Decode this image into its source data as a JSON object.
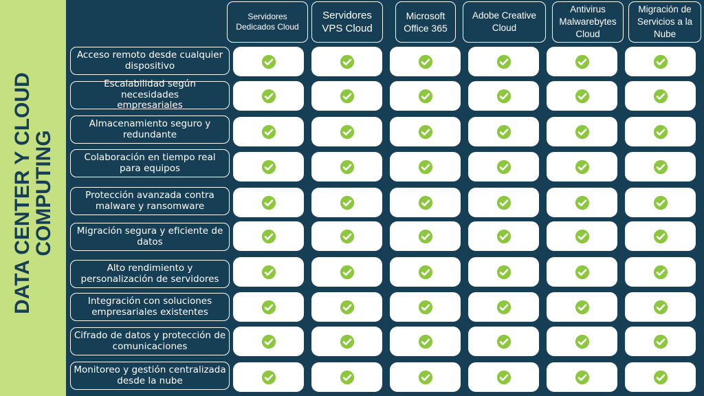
{
  "title": "DATA CENTER Y CLOUD COMPUTING",
  "colors": {
    "side_band": "#c5e080",
    "board": "#163e55",
    "check": "#8dc63f",
    "cell": "#ffffff"
  },
  "columns": [
    "Servidores Dedicados Cloud",
    "Servidores VPS Cloud",
    "Microsoft Office 365",
    "Adobe Creative Cloud",
    "Antivirus Malwarebytes Cloud",
    "Migración de Servicios a la Nube"
  ],
  "rows": [
    {
      "label": "Acceso remoto desde cualquier dispositivo",
      "checks": [
        true,
        true,
        true,
        true,
        true,
        true
      ]
    },
    {
      "label": "Escalabilidad según necesidades empresariales",
      "checks": [
        true,
        true,
        true,
        true,
        true,
        true
      ]
    },
    {
      "label": "Almacenamiento seguro y redundante",
      "checks": [
        true,
        true,
        true,
        true,
        true,
        true
      ]
    },
    {
      "label": "Colaboración en tiempo real para equipos",
      "checks": [
        true,
        true,
        true,
        true,
        true,
        true
      ]
    },
    {
      "label": "Protección avanzada contra malware y ransomware",
      "checks": [
        true,
        true,
        true,
        true,
        true,
        true
      ]
    },
    {
      "label": "Migración segura y eficiente de datos",
      "checks": [
        true,
        true,
        true,
        true,
        true,
        true
      ]
    },
    {
      "label": "Alto rendimiento y personalización de servidores",
      "checks": [
        true,
        true,
        true,
        true,
        true,
        true
      ]
    },
    {
      "label": "Integración con soluciones empresariales existentes",
      "checks": [
        true,
        true,
        true,
        true,
        true,
        true
      ]
    },
    {
      "label": "Cifrado de datos y protección de comunicaciones",
      "checks": [
        true,
        true,
        true,
        true,
        true,
        true
      ]
    },
    {
      "label": "Monitoreo y gestión centralizada desde la nube",
      "checks": [
        true,
        true,
        true,
        true,
        true,
        true
      ]
    }
  ],
  "icon": "check-circle-icon"
}
